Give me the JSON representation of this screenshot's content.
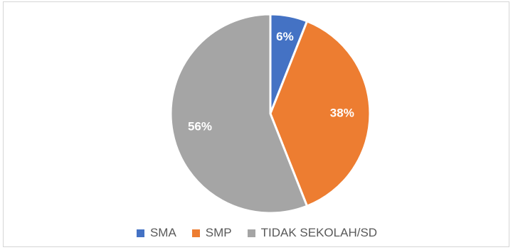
{
  "chart_data": {
    "type": "pie",
    "categories": [
      "SMA",
      "SMP",
      "TIDAK SEKOLAH/SD"
    ],
    "values": [
      6,
      38,
      56
    ],
    "labels": [
      "6%",
      "38%",
      "56%"
    ],
    "colors": [
      "#4472c4",
      "#ed7d31",
      "#a5a5a5"
    ],
    "legend_position": "bottom",
    "start_angle": "top, clockwise"
  }
}
